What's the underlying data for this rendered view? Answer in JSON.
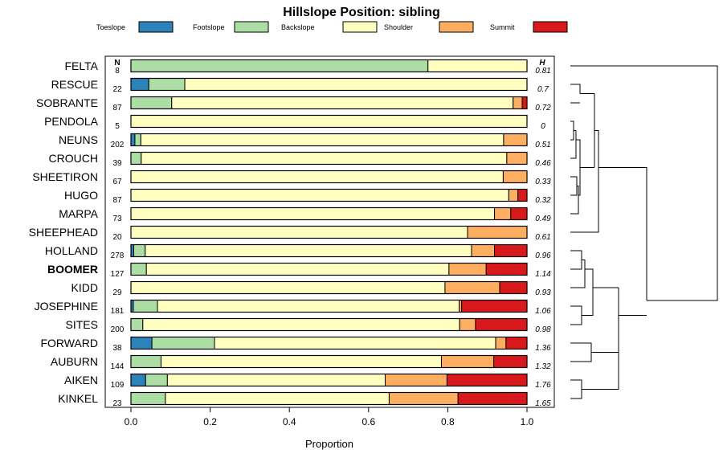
{
  "chart_data": {
    "type": "bar",
    "subtype": "stacked-horizontal-proportion",
    "title": "Hillslope Position: sibling",
    "xlabel": "Proportion",
    "ylabel": "",
    "xlim": [
      0,
      1
    ],
    "x_ticks": [
      "0.0",
      "0.2",
      "0.4",
      "0.6",
      "0.8",
      "1.0"
    ],
    "n_header": "N",
    "h_header": "H",
    "legend_position": "top",
    "series": [
      {
        "name": "Toeslope",
        "color": "#2b83ba"
      },
      {
        "name": "Footslope",
        "color": "#abdda4"
      },
      {
        "name": "Backslope",
        "color": "#ffffbf"
      },
      {
        "name": "Shoulder",
        "color": "#fdae61"
      },
      {
        "name": "Summit",
        "color": "#d7191c"
      }
    ],
    "rows": [
      {
        "label": "FELTA",
        "n": "8",
        "h": "0.81",
        "values": [
          0,
          0.75,
          0.25,
          0,
          0
        ]
      },
      {
        "label": "RESCUE",
        "n": "22",
        "h": "0.7",
        "values": [
          0.045,
          0.091,
          0.864,
          0,
          0
        ]
      },
      {
        "label": "SOBRANTE",
        "n": "87",
        "h": "0.72",
        "values": [
          0,
          0.103,
          0.862,
          0.023,
          0.012
        ]
      },
      {
        "label": "PENDOLA",
        "n": "5",
        "h": "0",
        "values": [
          0,
          0,
          1.0,
          0,
          0
        ]
      },
      {
        "label": "NEUNS",
        "n": "202",
        "h": "0.51",
        "values": [
          0.01,
          0.015,
          0.916,
          0.059,
          0
        ]
      },
      {
        "label": "CROUCH",
        "n": "39",
        "h": "0.46",
        "values": [
          0,
          0.026,
          0.923,
          0.051,
          0
        ]
      },
      {
        "label": "SHEETIRON",
        "n": "67",
        "h": "0.33",
        "values": [
          0,
          0,
          0.94,
          0.06,
          0
        ]
      },
      {
        "label": "HUGO",
        "n": "87",
        "h": "0.32",
        "values": [
          0,
          0,
          0.954,
          0.023,
          0.023
        ]
      },
      {
        "label": "MARPA",
        "n": "73",
        "h": "0.49",
        "values": [
          0,
          0,
          0.918,
          0.041,
          0.041
        ]
      },
      {
        "label": "SHEEPHEAD",
        "n": "20",
        "h": "0.61",
        "values": [
          0,
          0,
          0.85,
          0.15,
          0
        ]
      },
      {
        "label": "HOLLAND",
        "n": "278",
        "h": "0.96",
        "values": [
          0.007,
          0.029,
          0.824,
          0.058,
          0.082
        ]
      },
      {
        "label": "BOOMER",
        "n": "127",
        "h": "1.14",
        "values": [
          0,
          0.039,
          0.764,
          0.094,
          0.103
        ],
        "bold": true
      },
      {
        "label": "KIDD",
        "n": "29",
        "h": "0.93",
        "values": [
          0,
          0,
          0.793,
          0.138,
          0.069
        ]
      },
      {
        "label": "JOSEPHINE",
        "n": "181",
        "h": "1.06",
        "values": [
          0.006,
          0.061,
          0.762,
          0.006,
          0.165
        ]
      },
      {
        "label": "SITES",
        "n": "200",
        "h": "0.98",
        "values": [
          0,
          0.03,
          0.8,
          0.04,
          0.13
        ]
      },
      {
        "label": "FORWARD",
        "n": "38",
        "h": "1.36",
        "values": [
          0.053,
          0.158,
          0.71,
          0.026,
          0.053
        ]
      },
      {
        "label": "AUBURN",
        "n": "144",
        "h": "1.32",
        "values": [
          0,
          0.076,
          0.708,
          0.132,
          0.084
        ]
      },
      {
        "label": "AIKEN",
        "n": "109",
        "h": "1.76",
        "values": [
          0.037,
          0.055,
          0.55,
          0.156,
          0.202
        ]
      },
      {
        "label": "KINKEL",
        "n": "23",
        "h": "1.65",
        "values": [
          0,
          0.087,
          0.565,
          0.174,
          0.174
        ]
      }
    ],
    "dendrogram": "hierarchical clustering of rows (right margin)"
  }
}
